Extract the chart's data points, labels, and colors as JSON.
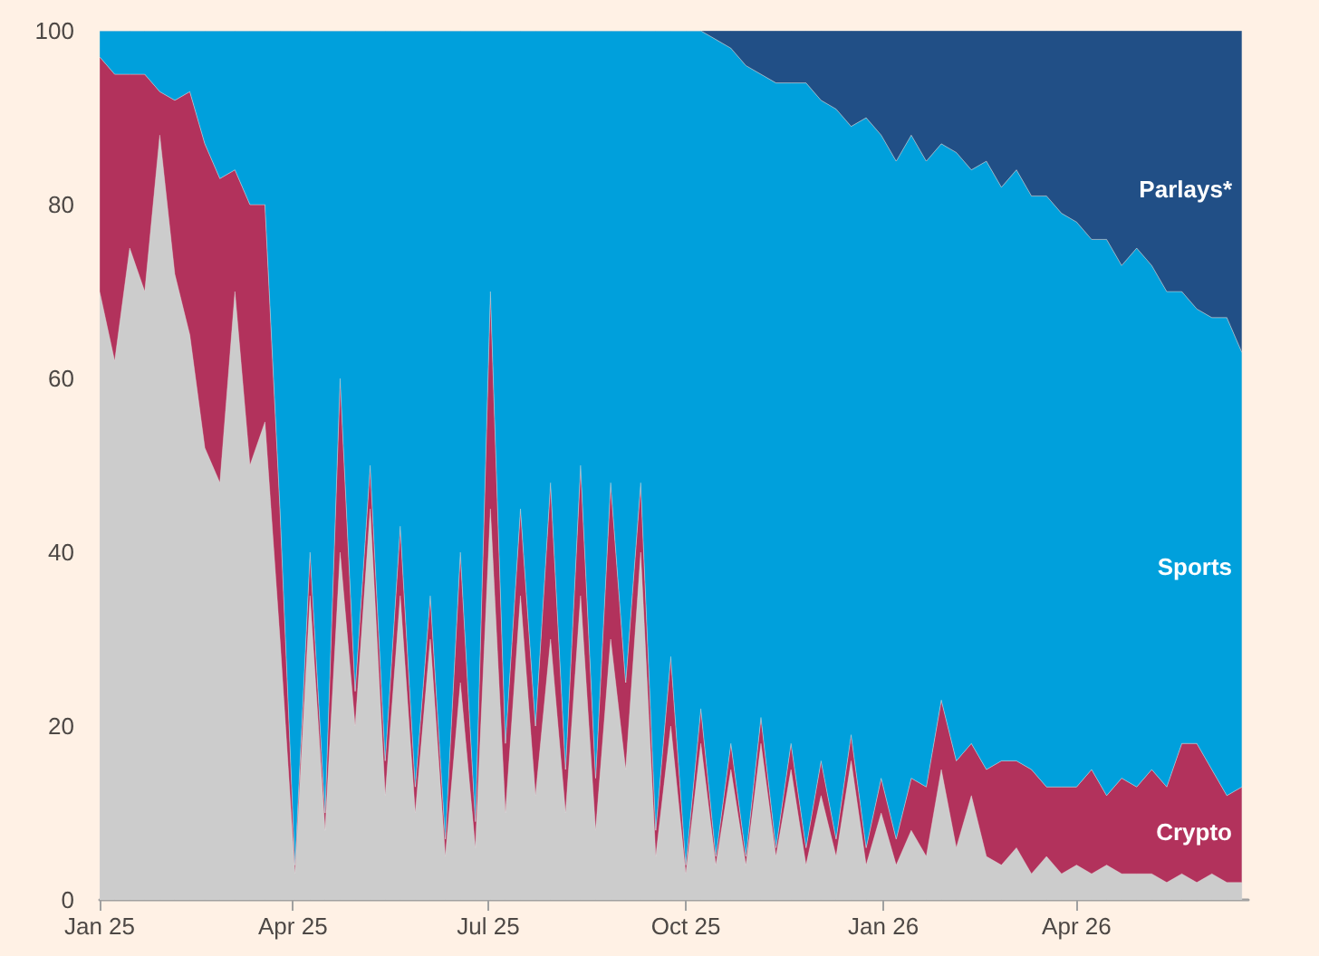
{
  "chart_data": {
    "type": "area",
    "stacked": true,
    "legend": false,
    "grid": false,
    "x": [
      "2025-01-01",
      "2025-01-08",
      "2025-01-15",
      "2025-01-22",
      "2025-01-29",
      "2025-02-05",
      "2025-02-12",
      "2025-02-19",
      "2025-02-26",
      "2025-03-05",
      "2025-03-12",
      "2025-03-19",
      "2025-03-26",
      "2025-04-02",
      "2025-04-09",
      "2025-04-16",
      "2025-04-23",
      "2025-04-30",
      "2025-05-07",
      "2025-05-14",
      "2025-05-21",
      "2025-05-28",
      "2025-06-04",
      "2025-06-11",
      "2025-06-18",
      "2025-06-25",
      "2025-07-02",
      "2025-07-09",
      "2025-07-16",
      "2025-07-23",
      "2025-07-30",
      "2025-08-06",
      "2025-08-13",
      "2025-08-20",
      "2025-08-27",
      "2025-09-03",
      "2025-09-10",
      "2025-09-17",
      "2025-09-24",
      "2025-10-01",
      "2025-10-08",
      "2025-10-15",
      "2025-10-22",
      "2025-10-29",
      "2025-11-05",
      "2025-11-12",
      "2025-11-19",
      "2025-11-26",
      "2025-12-03",
      "2025-12-10",
      "2025-12-17",
      "2025-12-24",
      "2025-12-31",
      "2026-01-07",
      "2026-01-14",
      "2026-01-21",
      "2026-01-28",
      "2026-02-04",
      "2026-02-11",
      "2026-02-18",
      "2026-02-25",
      "2026-03-04",
      "2026-03-11",
      "2026-03-18",
      "2026-03-25",
      "2026-04-01",
      "2026-04-08",
      "2026-04-15",
      "2026-04-22",
      "2026-04-29",
      "2026-05-06",
      "2026-05-13",
      "2026-05-20",
      "2026-05-27",
      "2026-06-03",
      "2026-06-10",
      "2026-06-17"
    ],
    "xlim": [
      "2025-01-01",
      "2026-06-20"
    ],
    "xticks": [
      {
        "value": "2025-01-01",
        "label": "Jan 25"
      },
      {
        "value": "2025-04-01",
        "label": "Apr 25"
      },
      {
        "value": "2025-07-01",
        "label": "Jul 25"
      },
      {
        "value": "2025-10-01",
        "label": "Oct 25"
      },
      {
        "value": "2026-01-01",
        "label": "Jan 26"
      },
      {
        "value": "2026-04-01",
        "label": "Apr 26"
      }
    ],
    "ylim": [
      0,
      100
    ],
    "yticks": [
      0,
      20,
      40,
      60,
      80,
      100
    ],
    "series": [
      {
        "color": "#cccccc",
        "values": [
          70,
          62,
          75,
          70,
          88,
          72,
          65,
          52,
          48,
          70,
          50,
          55,
          30,
          3,
          35,
          8,
          40,
          20,
          45,
          12,
          35,
          10,
          30,
          5,
          25,
          6,
          45,
          10,
          35,
          12,
          30,
          10,
          35,
          8,
          30,
          15,
          40,
          5,
          20,
          3,
          18,
          4,
          15,
          4,
          18,
          5,
          15,
          4,
          12,
          5,
          16,
          4,
          10,
          4,
          8,
          5,
          15,
          6,
          12,
          5,
          4,
          6,
          3,
          5,
          3,
          4,
          3,
          4,
          3,
          3,
          3,
          2,
          3,
          2,
          3,
          2,
          2
        ]
      },
      {
        "name": "Crypto",
        "color": "#b2325c",
        "values": [
          27,
          33,
          20,
          25,
          5,
          20,
          28,
          35,
          35,
          14,
          30,
          25,
          15,
          1,
          5,
          2,
          20,
          4,
          5,
          4,
          8,
          3,
          5,
          2,
          15,
          3,
          25,
          8,
          10,
          8,
          18,
          5,
          15,
          6,
          18,
          10,
          8,
          3,
          8,
          1,
          4,
          1,
          3,
          1,
          3,
          1,
          3,
          2,
          4,
          2,
          3,
          2,
          4,
          3,
          6,
          8,
          8,
          10,
          6,
          10,
          12,
          10,
          12,
          8,
          10,
          9,
          12,
          8,
          11,
          10,
          12,
          11,
          15,
          16,
          12,
          10,
          11
        ]
      },
      {
        "name": "Sports",
        "color": "#00a0dc",
        "values": [
          3,
          5,
          5,
          5,
          7,
          8,
          7,
          13,
          17,
          16,
          20,
          20,
          55,
          96,
          60,
          90,
          40,
          76,
          50,
          84,
          57,
          87,
          65,
          93,
          60,
          91,
          30,
          82,
          55,
          80,
          52,
          85,
          50,
          86,
          52,
          75,
          52,
          92,
          72,
          96,
          78,
          94,
          80,
          91,
          74,
          88,
          76,
          88,
          76,
          84,
          70,
          84,
          74,
          78,
          74,
          72,
          64,
          70,
          66,
          70,
          66,
          68,
          66,
          68,
          66,
          65,
          61,
          64,
          59,
          62,
          58,
          57,
          52,
          50,
          52,
          55,
          50
        ]
      },
      {
        "name": "Parlays*",
        "color": "#214f86",
        "values": [
          0,
          0,
          0,
          0,
          0,
          0,
          0,
          0,
          0,
          0,
          0,
          0,
          0,
          0,
          0,
          0,
          0,
          0,
          0,
          0,
          0,
          0,
          0,
          0,
          0,
          0,
          0,
          0,
          0,
          0,
          0,
          0,
          0,
          0,
          0,
          0,
          0,
          0,
          0,
          0,
          0,
          1,
          2,
          4,
          5,
          6,
          6,
          6,
          8,
          9,
          11,
          10,
          12,
          15,
          12,
          15,
          13,
          14,
          16,
          15,
          18,
          16,
          19,
          19,
          21,
          22,
          24,
          24,
          27,
          25,
          27,
          30,
          30,
          32,
          33,
          33,
          37
        ]
      }
    ]
  }
}
